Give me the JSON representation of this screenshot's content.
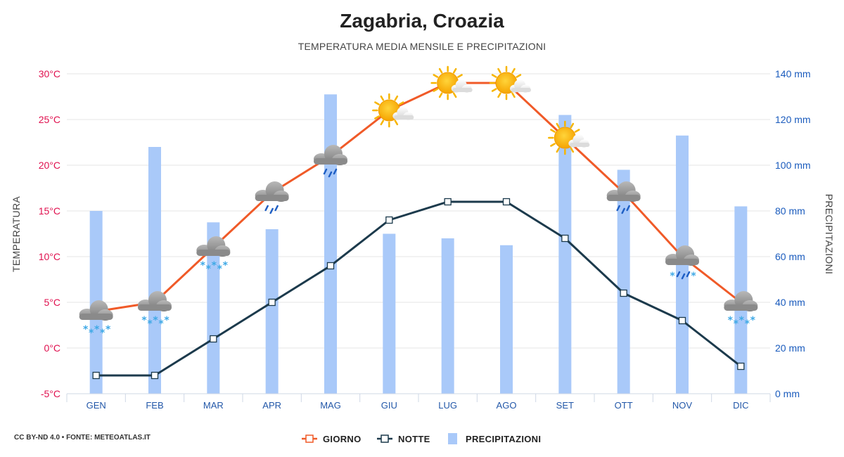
{
  "header": {
    "title": "Zagabria, Croazia",
    "subtitle": "TEMPERATURA MEDIA MENSILE E PRECIPITAZIONI"
  },
  "footer": {
    "credit": "CC BY-ND 4.0 • FONTE: METEOATLAS.IT"
  },
  "colors": {
    "giorno": "#f05a28",
    "notte": "#1c3a4c",
    "precipitazioni": "#a9c9f9",
    "left_axis": "#e0114f",
    "right_axis": "#1a5bbd",
    "grid": "#e6e6e6"
  },
  "chart_data": {
    "type": "line",
    "categories": [
      "GEN",
      "FEB",
      "MAR",
      "APR",
      "MAG",
      "GIU",
      "LUG",
      "AGO",
      "SET",
      "OTT",
      "NOV",
      "DIC"
    ],
    "series": [
      {
        "name": "GIORNO",
        "type": "line",
        "axis": "left",
        "values": [
          4,
          5,
          11,
          17,
          21,
          26,
          29,
          29,
          23,
          17,
          10,
          5
        ]
      },
      {
        "name": "NOTTE",
        "type": "line",
        "axis": "left",
        "values": [
          -3,
          -3,
          1,
          5,
          9,
          14,
          16,
          16,
          12,
          6,
          3,
          -2
        ]
      },
      {
        "name": "PRECIPITAZIONI",
        "type": "bar",
        "axis": "right",
        "values": [
          80,
          108,
          75,
          72,
          131,
          70,
          68,
          65,
          122,
          98,
          113,
          82
        ]
      }
    ],
    "weather_icons": [
      "cloud-snow-icon",
      "cloud-snow-icon",
      "cloud-snow-icon",
      "cloud-rain-icon",
      "cloud-rain-icon",
      "sun-cloud-icon",
      "sun-cloud-icon",
      "sun-cloud-icon",
      "sun-cloud-icon",
      "cloud-rain-icon",
      "cloud-sleet-icon",
      "cloud-snow-icon"
    ],
    "y_left": {
      "label": "TEMPERATURA",
      "range": [
        -5,
        30
      ],
      "ticks": [
        -5,
        0,
        5,
        10,
        15,
        20,
        25,
        30
      ],
      "tick_labels": [
        "-5°C",
        "0°C",
        "5°C",
        "10°C",
        "15°C",
        "20°C",
        "25°C",
        "30°C"
      ]
    },
    "y_right": {
      "label": "PRECIPITAZIONI",
      "range": [
        0,
        140
      ],
      "ticks": [
        0,
        20,
        40,
        60,
        80,
        100,
        120,
        140
      ],
      "tick_labels": [
        "0 mm",
        "20 mm",
        "40 mm",
        "60 mm",
        "80 mm",
        "100 mm",
        "120 mm",
        "140 mm"
      ]
    },
    "grid": true,
    "legend": {
      "placement": "bottom",
      "entries": [
        "GIORNO",
        "NOTTE",
        "PRECIPITAZIONI"
      ]
    }
  }
}
